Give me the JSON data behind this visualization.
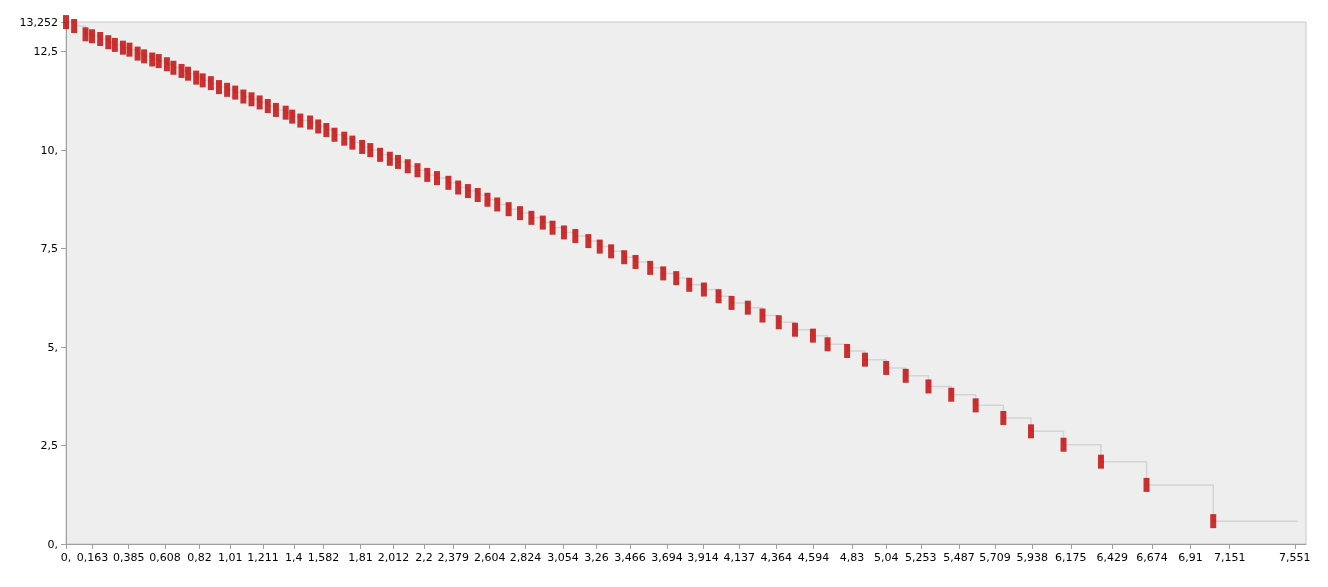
{
  "chart_data": {
    "type": "step",
    "xlim": [
      0,
      7.62
    ],
    "ylim": [
      0,
      13.252
    ],
    "xticks": [
      {
        "value": 0,
        "label": "0,"
      },
      {
        "value": 0.163,
        "label": "0,163"
      },
      {
        "value": 0.385,
        "label": "0,385"
      },
      {
        "value": 0.608,
        "label": "0,608"
      },
      {
        "value": 0.82,
        "label": "0,82"
      },
      {
        "value": 1.01,
        "label": "1,01"
      },
      {
        "value": 1.211,
        "label": "1,211"
      },
      {
        "value": 1.4,
        "label": "1,4"
      },
      {
        "value": 1.582,
        "label": "1,582"
      },
      {
        "value": 1.81,
        "label": "1,81"
      },
      {
        "value": 2.012,
        "label": "2,012"
      },
      {
        "value": 2.2,
        "label": "2,2"
      },
      {
        "value": 2.379,
        "label": "2,379"
      },
      {
        "value": 2.604,
        "label": "2,604"
      },
      {
        "value": 2.824,
        "label": "2,824"
      },
      {
        "value": 3.054,
        "label": "3,054"
      },
      {
        "value": 3.26,
        "label": "3,26"
      },
      {
        "value": 3.466,
        "label": "3,466"
      },
      {
        "value": 3.694,
        "label": "3,694"
      },
      {
        "value": 3.914,
        "label": "3,914"
      },
      {
        "value": 4.137,
        "label": "4,137"
      },
      {
        "value": 4.364,
        "label": "4,364"
      },
      {
        "value": 4.594,
        "label": "4,594"
      },
      {
        "value": 4.83,
        "label": "4,83"
      },
      {
        "value": 5.04,
        "label": "5,04"
      },
      {
        "value": 5.253,
        "label": "5,253"
      },
      {
        "value": 5.487,
        "label": "5,487"
      },
      {
        "value": 5.709,
        "label": "5,709"
      },
      {
        "value": 5.938,
        "label": "5,938"
      },
      {
        "value": 6.175,
        "label": "6,175"
      },
      {
        "value": 6.429,
        "label": "6,429"
      },
      {
        "value": 6.674,
        "label": "6,674"
      },
      {
        "value": 6.91,
        "label": "6,91"
      },
      {
        "value": 7.151,
        "label": "7,151"
      },
      {
        "value": 7.551,
        "label": "7,551"
      }
    ],
    "yticks": [
      {
        "value": 0,
        "label": "0,"
      },
      {
        "value": 2.5,
        "label": "2,5"
      },
      {
        "value": 5,
        "label": "5,"
      },
      {
        "value": 7.5,
        "label": "7,5"
      },
      {
        "value": 10,
        "label": "10,"
      },
      {
        "value": 12.5,
        "label": "12,5"
      },
      {
        "value": 13.252,
        "label": "13,252"
      }
    ],
    "series": [
      {
        "color": "#d4d4d4",
        "marker": "none",
        "x": [
          0,
          0.05,
          0.12,
          0.16,
          0.21,
          0.26,
          0.3,
          0.35,
          0.39,
          0.44,
          0.48,
          0.53,
          0.57,
          0.62,
          0.66,
          0.71,
          0.75,
          0.8,
          0.84,
          0.89,
          0.94,
          0.99,
          1.04,
          1.09,
          1.14,
          1.19,
          1.24,
          1.29,
          1.35,
          1.39,
          1.44,
          1.5,
          1.55,
          1.6,
          1.65,
          1.71,
          1.76,
          1.82,
          1.87,
          1.93,
          1.99,
          2.04,
          2.1,
          2.16,
          2.22,
          2.28,
          2.35,
          2.41,
          2.47,
          2.53,
          2.59,
          2.65,
          2.72,
          2.79,
          2.86,
          2.93,
          2.99,
          3.06,
          3.13,
          3.21,
          3.28,
          3.35,
          3.43,
          3.5,
          3.59,
          3.67,
          3.75,
          3.83,
          3.92,
          4.01,
          4.09,
          4.19,
          4.28,
          4.38,
          4.48,
          4.59,
          4.68,
          4.8,
          4.91,
          5.04,
          5.16,
          5.3,
          5.44,
          5.59,
          5.76,
          5.93,
          6.13,
          6.36,
          6.64,
          7.05,
          7.57
        ],
        "values": [
          13.25,
          13.15,
          12.94,
          12.89,
          12.82,
          12.74,
          12.67,
          12.6,
          12.55,
          12.45,
          12.38,
          12.3,
          12.26,
          12.18,
          12.09,
          12.01,
          11.94,
          11.84,
          11.77,
          11.7,
          11.6,
          11.53,
          11.46,
          11.36,
          11.29,
          11.21,
          11.12,
          11.02,
          10.95,
          10.85,
          10.75,
          10.7,
          10.6,
          10.51,
          10.39,
          10.29,
          10.19,
          10.08,
          10,
          9.88,
          9.78,
          9.7,
          9.59,
          9.49,
          9.37,
          9.29,
          9.17,
          9.05,
          8.96,
          8.86,
          8.74,
          8.62,
          8.5,
          8.4,
          8.28,
          8.16,
          8.03,
          7.91,
          7.82,
          7.69,
          7.55,
          7.43,
          7.28,
          7.16,
          7.01,
          6.87,
          6.75,
          6.58,
          6.46,
          6.29,
          6.12,
          6,
          5.8,
          5.63,
          5.44,
          5.29,
          5.07,
          4.9,
          4.68,
          4.47,
          4.27,
          4,
          3.79,
          3.52,
          3.2,
          2.86,
          2.52,
          2.09,
          1.5,
          0.58,
          0.58
        ]
      },
      {
        "type": "scatter",
        "color": "#c00000",
        "marker": "square",
        "x": [
          0,
          0.05,
          0.12,
          0.16,
          0.21,
          0.26,
          0.3,
          0.35,
          0.39,
          0.44,
          0.48,
          0.53,
          0.57,
          0.62,
          0.66,
          0.71,
          0.75,
          0.8,
          0.84,
          0.89,
          0.94,
          0.99,
          1.04,
          1.09,
          1.14,
          1.19,
          1.24,
          1.29,
          1.35,
          1.39,
          1.44,
          1.5,
          1.55,
          1.6,
          1.65,
          1.71,
          1.76,
          1.82,
          1.87,
          1.93,
          1.99,
          2.04,
          2.1,
          2.16,
          2.22,
          2.28,
          2.35,
          2.41,
          2.47,
          2.53,
          2.59,
          2.65,
          2.72,
          2.79,
          2.86,
          2.93,
          2.99,
          3.06,
          3.13,
          3.21,
          3.28,
          3.35,
          3.43,
          3.5,
          3.59,
          3.67,
          3.75,
          3.83,
          3.92,
          4.01,
          4.09,
          4.19,
          4.28,
          4.38,
          4.48,
          4.59,
          4.68,
          4.8,
          4.91,
          5.04,
          5.16,
          5.3,
          5.44,
          5.59,
          5.76,
          5.93,
          6.13,
          6.36,
          6.64,
          7.05
        ],
        "values": [
          13.25,
          13.15,
          12.94,
          12.89,
          12.82,
          12.74,
          12.67,
          12.6,
          12.55,
          12.45,
          12.38,
          12.3,
          12.26,
          12.18,
          12.09,
          12.01,
          11.94,
          11.84,
          11.77,
          11.7,
          11.6,
          11.53,
          11.46,
          11.36,
          11.29,
          11.21,
          11.12,
          11.02,
          10.95,
          10.85,
          10.75,
          10.7,
          10.6,
          10.51,
          10.39,
          10.29,
          10.19,
          10.08,
          10,
          9.88,
          9.78,
          9.7,
          9.59,
          9.49,
          9.37,
          9.29,
          9.17,
          9.05,
          8.96,
          8.86,
          8.74,
          8.62,
          8.5,
          8.4,
          8.28,
          8.16,
          8.03,
          7.91,
          7.82,
          7.69,
          7.55,
          7.43,
          7.28,
          7.16,
          7.01,
          6.87,
          6.75,
          6.58,
          6.46,
          6.29,
          6.12,
          6,
          5.8,
          5.63,
          5.44,
          5.29,
          5.07,
          4.9,
          4.68,
          4.47,
          4.27,
          4,
          3.79,
          3.52,
          3.2,
          2.86,
          2.52,
          2.09,
          1.5,
          0.58
        ]
      }
    ]
  }
}
